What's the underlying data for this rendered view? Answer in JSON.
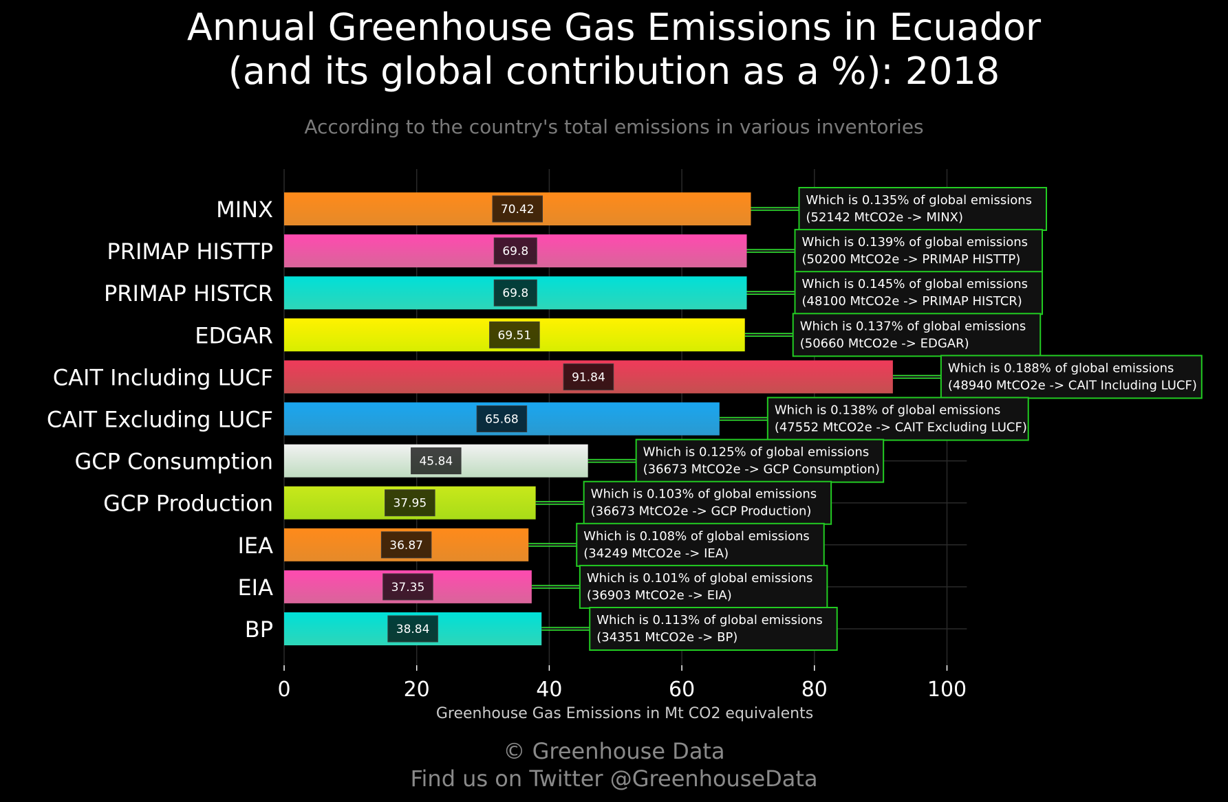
{
  "chart_data": {
    "type": "bar",
    "orientation": "horizontal",
    "title_line1": "Annual Greenhouse Gas Emissions in Ecuador",
    "title_line2": "(and its global contribution as a %): 2018",
    "subtitle": "According to the country's total emissions in various inventories",
    "xlabel": "Greenhouse Gas Emissions in Mt CO2 equivalents",
    "ylabel": "",
    "xlim": [
      0,
      103
    ],
    "xticks": [
      0,
      20,
      40,
      60,
      80,
      100
    ],
    "grid": true,
    "categories": [
      "MINX",
      "PRIMAP HISTTP",
      "PRIMAP HISTCR",
      "EDGAR",
      "CAIT Including LUCF",
      "CAIT Excluding LUCF",
      "GCP Consumption",
      "GCP Production",
      "IEA",
      "EIA",
      "BP"
    ],
    "values": [
      70.42,
      69.8,
      69.8,
      69.51,
      91.84,
      65.68,
      45.84,
      37.95,
      36.87,
      37.35,
      38.84
    ],
    "value_labels": [
      "70.42",
      "69.8",
      "69.8",
      "69.51",
      "91.84",
      "65.68",
      "45.84",
      "37.95",
      "36.87",
      "37.35",
      "38.84"
    ],
    "bar_colors": [
      [
        "#ff8a1a",
        "#e58a2a"
      ],
      [
        "#ff4ab0",
        "#d9659a"
      ],
      [
        "#00e0d8",
        "#2ed6b8"
      ],
      [
        "#fff200",
        "#d8ee00"
      ],
      [
        "#f03a5a",
        "#c45050"
      ],
      [
        "#1aa6f0",
        "#2a9ad0"
      ],
      [
        "#f2f2f2",
        "#bfdcc0"
      ],
      [
        "#c8e81a",
        "#a8dc18"
      ],
      [
        "#ff8a1a",
        "#e58a2a"
      ],
      [
        "#ff4ab0",
        "#d9659a"
      ],
      [
        "#00e0d8",
        "#2ed6b8"
      ]
    ],
    "annotations": [
      {
        "line1": "Which is 0.135% of global emissions",
        "line2": "(52142 MtCO2e -> MINX)"
      },
      {
        "line1": "Which is 0.139% of global emissions",
        "line2": "(50200 MtCO2e -> PRIMAP HISTTP)"
      },
      {
        "line1": "Which is 0.145% of global emissions",
        "line2": "(48100 MtCO2e -> PRIMAP HISTCR)"
      },
      {
        "line1": "Which is 0.137% of global emissions",
        "line2": "(50660 MtCO2e -> EDGAR)"
      },
      {
        "line1": "Which is 0.188% of global emissions",
        "line2": "(48940 MtCO2e -> CAIT Including LUCF)"
      },
      {
        "line1": "Which is 0.138% of global emissions",
        "line2": "(47552 MtCO2e -> CAIT Excluding LUCF)"
      },
      {
        "line1": "Which is 0.125% of global emissions",
        "line2": "(36673 MtCO2e -> GCP Consumption)"
      },
      {
        "line1": "Which is 0.103% of global emissions",
        "line2": "(36673 MtCO2e -> GCP Production)"
      },
      {
        "line1": "Which is 0.108% of global emissions",
        "line2": "(34249 MtCO2e -> IEA)"
      },
      {
        "line1": "Which is 0.101% of global emissions",
        "line2": "(36903 MtCO2e -> EIA)"
      },
      {
        "line1": "Which is 0.113% of global emissions",
        "line2": "(34351 MtCO2e -> BP)"
      }
    ]
  },
  "colors": {
    "background": "#000000",
    "grid": "#2a2a2a",
    "annotation_border": "#22cc22",
    "annotation_fill": "#111111",
    "connector": "#33ee33",
    "subtitle": "#7a7a7a",
    "footer": "#8a8a8a"
  },
  "footer": {
    "line1": "© Greenhouse Data",
    "line2": "Find us on Twitter @GreenhouseData"
  }
}
